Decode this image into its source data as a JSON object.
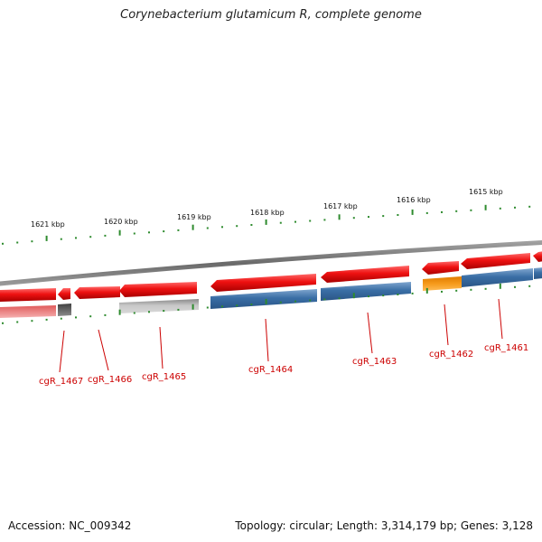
{
  "title": "Corynebacterium glutamicum R, complete genome",
  "footer": {
    "accession": "Accession: NC_009342",
    "summary": "Topology: circular; Length: 3,314,179 bp; Genes: 3,128"
  },
  "colors": {
    "backbone": "#7a7a7a",
    "tick": "#2e8b2e",
    "forward_gene": "#ee1111",
    "gene_label": "#cc0000",
    "reverse_blue": "#3a6ea5",
    "reverse_orange": "#f2900c",
    "reverse_gray": "#bbbbbb",
    "reverse_pink": "#e87a7a"
  },
  "kbp_labels": [
    "1621 kbp",
    "1620 kbp",
    "1619 kbp",
    "1618 kbp",
    "1617 kbp",
    "1616 kbp",
    "1615 kbp"
  ],
  "gene_labels": [
    "cgR_1467",
    "cgR_1466",
    "cgR_1465",
    "cgR_1464",
    "cgR_1463",
    "cgR_1462",
    "cgR_1461"
  ]
}
